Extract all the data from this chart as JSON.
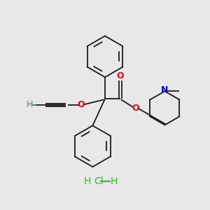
{
  "bg_color": "#e8e8e8",
  "line_color": "#1a1a1a",
  "oxygen_color": "#ee0000",
  "nitrogen_color": "#0000cc",
  "hcl_color": "#33bb33",
  "alkyne_color": "#4a7a88",
  "figsize": [
    3.0,
    3.0
  ],
  "dpi": 100,
  "xlim": [
    0,
    10
  ],
  "ylim": [
    0,
    10
  ]
}
